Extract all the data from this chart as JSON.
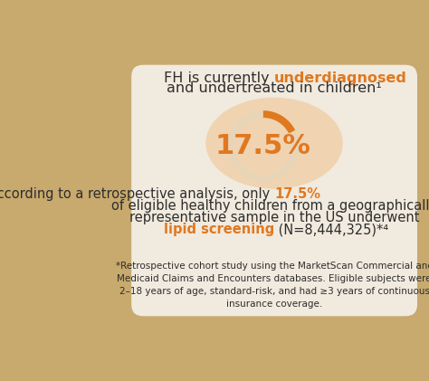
{
  "bg_color": "#c8a96e",
  "card_color": "#f5f0e8",
  "orange": "#e07820",
  "dark_text": "#2d2d2d",
  "title_normal1": "FH is currently ",
  "title_highlight": "underdiagnosed",
  "title_line2": "and undertreated in children¹",
  "percent": "17.5%",
  "percent_value": 17.5,
  "body_line1_normal": "According to a retrospective analysis, only ",
  "body_highlight1": "17.5%",
  "body_line2": "of eligible healthy children from a geographically",
  "body_line3": "representative sample in the US underwent",
  "body_line4_highlight": "lipid screening",
  "body_line4_rest": " (N=8,444,325)*⁴",
  "footnote": "*Retrospective cohort study using the MarketScan Commercial and\nMedicaid Claims and Encounters databases. Eligible subjects were\n2–18 years of age, standard-risk, and had ≥3 years of continuous\ninsurance coverage.",
  "us_map_color": "#f0c89a",
  "ring_bg_color": "#e8d5b8",
  "ring_fg_color": "#e07820"
}
